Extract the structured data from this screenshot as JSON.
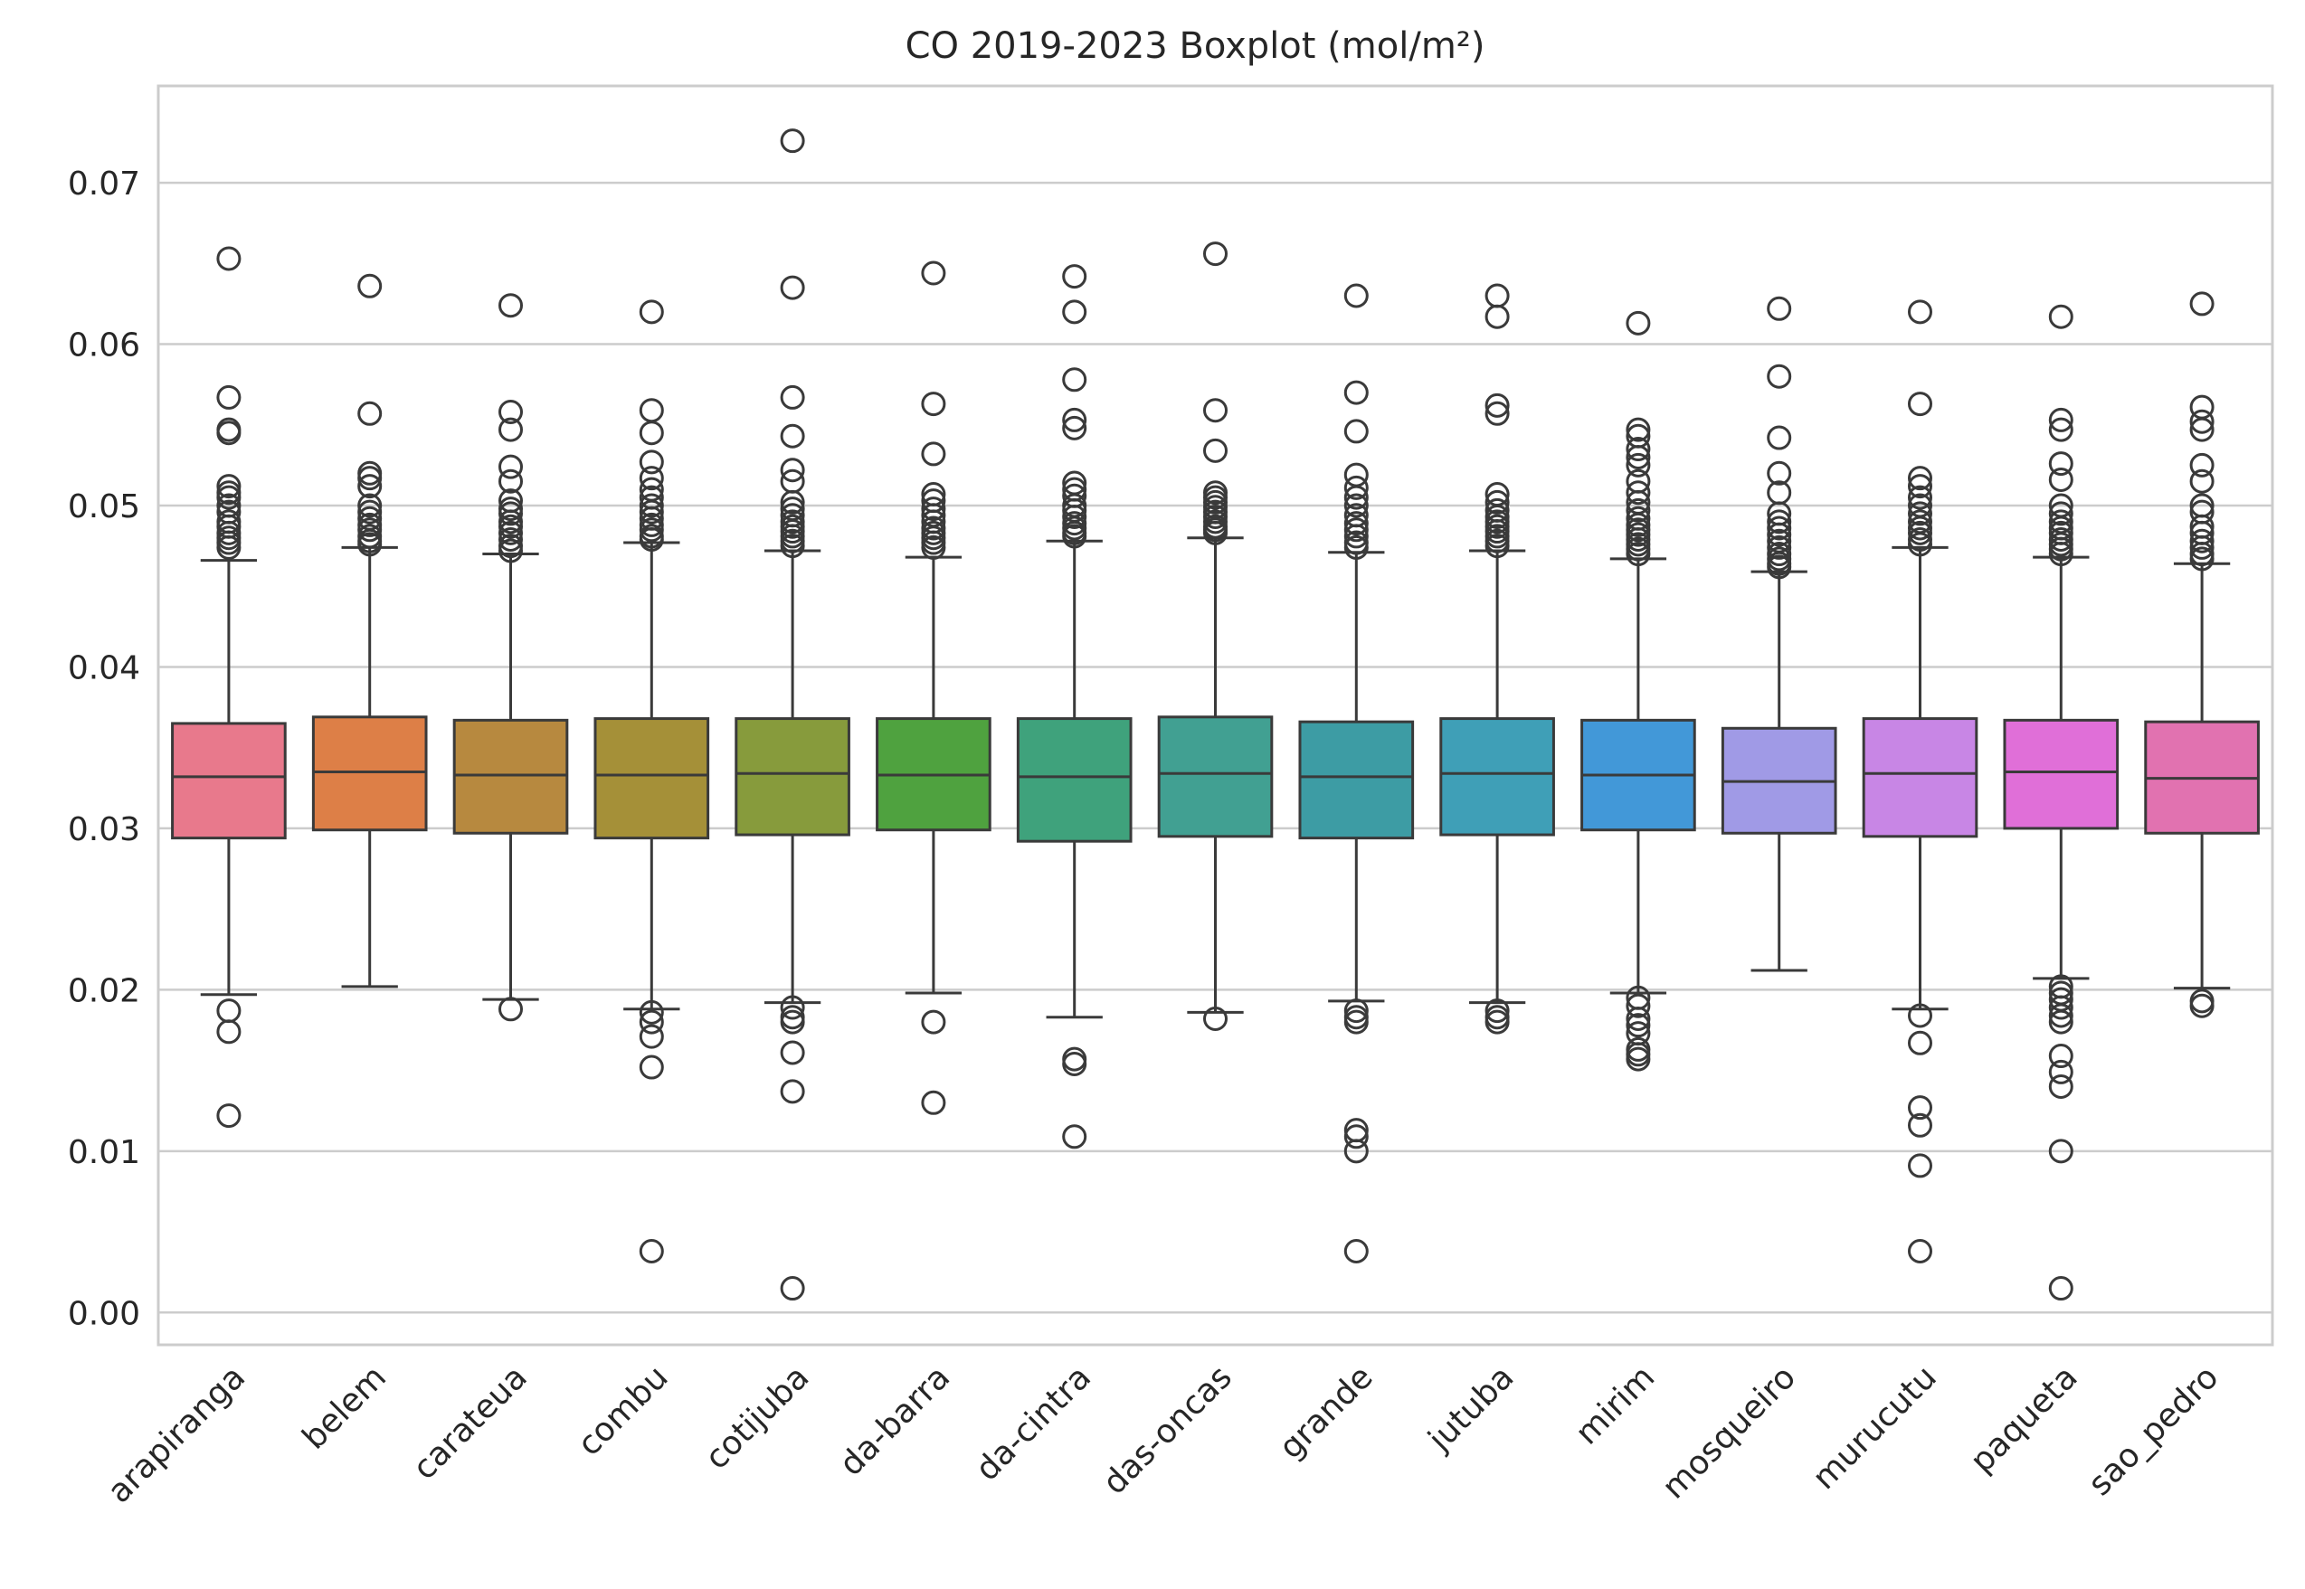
{
  "chart_data": {
    "type": "boxplot",
    "title": "CO 2019-2023 Boxplot (mol/m²)",
    "xlabel": "",
    "ylabel": "",
    "ylim": [
      -0.002,
      0.076
    ],
    "yticks": [
      "0.00",
      "0.01",
      "0.02",
      "0.03",
      "0.04",
      "0.05",
      "0.06",
      "0.07"
    ],
    "grid": true,
    "categories": [
      "arapiranga",
      "belem",
      "carateua",
      "combu",
      "cotijuba",
      "da-barra",
      "da-cintra",
      "das-oncas",
      "grande",
      "jutuba",
      "mirim",
      "mosqueiro",
      "murucutu",
      "paqueta",
      "sao_pedro"
    ],
    "colors": [
      "#e8798c",
      "#dd7f47",
      "#b7893f",
      "#a59038",
      "#879b3c",
      "#4fa23f",
      "#3fa27c",
      "#41a092",
      "#3d9ca4",
      "#3f9fb7",
      "#4298d8",
      "#a09ae6",
      "#c886e5",
      "#e06fd8",
      "#e172b0"
    ],
    "boxes": [
      {
        "name": "arapiranga",
        "whisker_low": 0.0197,
        "q1": 0.0294,
        "median": 0.0332,
        "q3": 0.0365,
        "whisker_high": 0.0466,
        "outliers": [
          0.0653,
          0.0567,
          0.0547,
          0.0545,
          0.0512,
          0.0508,
          0.0505,
          0.05,
          0.0496,
          0.049,
          0.0487,
          0.0483,
          0.048,
          0.0477,
          0.0474,
          0.0187,
          0.0174,
          0.0122
        ]
      },
      {
        "name": "belem",
        "whisker_low": 0.0202,
        "q1": 0.0299,
        "median": 0.0335,
        "q3": 0.0369,
        "whisker_high": 0.0474,
        "outliers": [
          0.0636,
          0.0557,
          0.052,
          0.0517,
          0.0512,
          0.05,
          0.0496,
          0.0492,
          0.0488,
          0.0485,
          0.0481,
          0.0478,
          0.0476
        ]
      },
      {
        "name": "carateua",
        "whisker_low": 0.0194,
        "q1": 0.0297,
        "median": 0.0333,
        "q3": 0.0367,
        "whisker_high": 0.047,
        "outliers": [
          0.0624,
          0.0558,
          0.0547,
          0.0524,
          0.0515,
          0.0503,
          0.0498,
          0.0495,
          0.049,
          0.0487,
          0.0483,
          0.0479,
          0.0475,
          0.0472,
          0.0188
        ]
      },
      {
        "name": "combu",
        "whisker_low": 0.0188,
        "q1": 0.0294,
        "median": 0.0333,
        "q3": 0.0368,
        "whisker_high": 0.0477,
        "outliers": [
          0.062,
          0.0559,
          0.0545,
          0.0527,
          0.0517,
          0.051,
          0.0505,
          0.05,
          0.0496,
          0.0492,
          0.0488,
          0.0485,
          0.0481,
          0.0479,
          0.0186,
          0.018,
          0.0171,
          0.0152,
          0.0038
        ]
      },
      {
        "name": "cotijuba",
        "whisker_low": 0.0192,
        "q1": 0.0296,
        "median": 0.0334,
        "q3": 0.0368,
        "whisker_high": 0.0472,
        "outliers": [
          0.0726,
          0.0635,
          0.0567,
          0.0543,
          0.0522,
          0.0515,
          0.0502,
          0.0498,
          0.0494,
          0.049,
          0.0487,
          0.0484,
          0.0481,
          0.0478,
          0.0475,
          0.0189,
          0.0183,
          0.018,
          0.0161,
          0.0137,
          0.0015
        ]
      },
      {
        "name": "da-barra",
        "whisker_low": 0.0198,
        "q1": 0.0299,
        "median": 0.0333,
        "q3": 0.0368,
        "whisker_high": 0.0468,
        "outliers": [
          0.0644,
          0.0563,
          0.0532,
          0.0507,
          0.0503,
          0.0498,
          0.0494,
          0.049,
          0.0486,
          0.0483,
          0.048,
          0.0477,
          0.0474,
          0.018,
          0.013
        ]
      },
      {
        "name": "da-cintra",
        "whisker_low": 0.0183,
        "q1": 0.0292,
        "median": 0.0332,
        "q3": 0.0368,
        "whisker_high": 0.0478,
        "outliers": [
          0.0642,
          0.062,
          0.0578,
          0.0553,
          0.0548,
          0.0514,
          0.051,
          0.0506,
          0.05,
          0.0497,
          0.0493,
          0.0489,
          0.0486,
          0.0483,
          0.0481,
          0.0157,
          0.0154,
          0.0109
        ]
      },
      {
        "name": "das-oncas",
        "whisker_low": 0.0186,
        "q1": 0.0295,
        "median": 0.0334,
        "q3": 0.0369,
        "whisker_high": 0.048,
        "outliers": [
          0.0656,
          0.0559,
          0.0534,
          0.0508,
          0.0505,
          0.0502,
          0.0499,
          0.0496,
          0.0493,
          0.049,
          0.0487,
          0.0485,
          0.0483,
          0.0182
        ]
      },
      {
        "name": "grande",
        "whisker_low": 0.0193,
        "q1": 0.0294,
        "median": 0.0332,
        "q3": 0.0366,
        "whisker_high": 0.0471,
        "outliers": [
          0.063,
          0.057,
          0.0546,
          0.0519,
          0.0511,
          0.0505,
          0.05,
          0.0494,
          0.0489,
          0.0485,
          0.0481,
          0.0477,
          0.0474,
          0.0187,
          0.0183,
          0.018,
          0.0113,
          0.0109,
          0.01,
          0.0038
        ]
      },
      {
        "name": "jutuba",
        "whisker_low": 0.0192,
        "q1": 0.0296,
        "median": 0.0334,
        "q3": 0.0368,
        "whisker_high": 0.0472,
        "outliers": [
          0.063,
          0.0617,
          0.0562,
          0.0557,
          0.0507,
          0.0502,
          0.0497,
          0.0493,
          0.049,
          0.0487,
          0.0484,
          0.0481,
          0.0478,
          0.0475,
          0.0187,
          0.0183,
          0.018
        ]
      },
      {
        "name": "mirim",
        "whisker_low": 0.0198,
        "q1": 0.0299,
        "median": 0.0333,
        "q3": 0.0367,
        "whisker_high": 0.0467,
        "outliers": [
          0.0613,
          0.0547,
          0.0543,
          0.0535,
          0.053,
          0.0525,
          0.0515,
          0.0508,
          0.0502,
          0.0497,
          0.0492,
          0.0488,
          0.0485,
          0.0482,
          0.0479,
          0.0476,
          0.0473,
          0.047,
          0.0195,
          0.019,
          0.0182,
          0.0178,
          0.0173,
          0.0163,
          0.016,
          0.0157
        ]
      },
      {
        "name": "mosqueiro",
        "whisker_low": 0.0212,
        "q1": 0.0297,
        "median": 0.0329,
        "q3": 0.0362,
        "whisker_high": 0.0459,
        "outliers": [
          0.0622,
          0.058,
          0.0542,
          0.052,
          0.0508,
          0.0495,
          0.049,
          0.0486,
          0.0482,
          0.0478,
          0.0474,
          0.047,
          0.0467,
          0.0464,
          0.0462
        ]
      },
      {
        "name": "murucutu",
        "whisker_low": 0.0188,
        "q1": 0.0295,
        "median": 0.0334,
        "q3": 0.0368,
        "whisker_high": 0.0474,
        "outliers": [
          0.062,
          0.0563,
          0.0517,
          0.0512,
          0.0505,
          0.05,
          0.0495,
          0.049,
          0.0486,
          0.0483,
          0.0479,
          0.0476,
          0.0184,
          0.0167,
          0.0127,
          0.0116,
          0.0091,
          0.0038
        ]
      },
      {
        "name": "paqueta",
        "whisker_low": 0.0207,
        "q1": 0.03,
        "median": 0.0335,
        "q3": 0.0367,
        "whisker_high": 0.0468,
        "outliers": [
          0.0617,
          0.0553,
          0.0547,
          0.0526,
          0.0516,
          0.05,
          0.0495,
          0.049,
          0.0486,
          0.0483,
          0.0479,
          0.0476,
          0.0473,
          0.047,
          0.0202,
          0.0198,
          0.0194,
          0.0189,
          0.0184,
          0.018,
          0.0159,
          0.0149,
          0.014,
          0.01,
          0.0015
        ]
      },
      {
        "name": "sao_pedro",
        "whisker_low": 0.0201,
        "q1": 0.0297,
        "median": 0.0331,
        "q3": 0.0366,
        "whisker_high": 0.0464,
        "outliers": [
          0.0625,
          0.0561,
          0.0552,
          0.0547,
          0.0525,
          0.0515,
          0.05,
          0.0496,
          0.0487,
          0.0483,
          0.0478,
          0.0474,
          0.047,
          0.0467,
          0.0193,
          0.019
        ]
      }
    ]
  }
}
